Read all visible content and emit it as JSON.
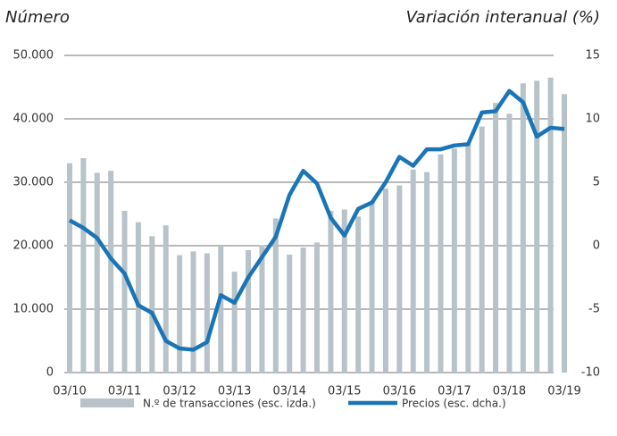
{
  "chart_data": {
    "type": "bar_line",
    "y_title": "Número",
    "y2_title": "Variación interanual (%)",
    "categories": [
      "03/10",
      null,
      null,
      null,
      "03/11",
      null,
      null,
      null,
      "03/12",
      null,
      null,
      null,
      "03/13",
      null,
      null,
      null,
      "03/14",
      null,
      null,
      null,
      "03/15",
      null,
      null,
      null,
      "03/16",
      null,
      null,
      null,
      "03/17",
      null,
      null,
      null,
      "03/18",
      null,
      null,
      null,
      "03/19"
    ],
    "series": [
      {
        "name": "N.º de transacciones (esc. izda.)",
        "color": "#b7c3c8",
        "type": "bar",
        "values": [
          33000,
          33800,
          31500,
          31800,
          25500,
          23700,
          21500,
          23200,
          18500,
          19100,
          18800,
          20000,
          15900,
          19300,
          20100,
          24300,
          18600,
          19700,
          20500,
          25500,
          25700,
          24600,
          27000,
          29000,
          29500,
          32000,
          31600,
          34400,
          35300,
          36000,
          38800,
          42500,
          40800,
          45600,
          46000,
          46500,
          43900
        ]
      },
      {
        "name": "Precios (esc. dcha.)",
        "color": "#1a75b8",
        "type": "line",
        "axis": "y2",
        "values": [
          2.0,
          1.4,
          0.6,
          -1.0,
          -2.2,
          -4.7,
          -5.3,
          -7.5,
          -8.1,
          -8.2,
          -7.6,
          -3.9,
          -4.5,
          -2.5,
          -0.9,
          0.7,
          4.0,
          5.9,
          4.9,
          2.2,
          0.8,
          2.9,
          3.4,
          5.0,
          7.0,
          6.3,
          7.6,
          7.6,
          7.9,
          8.0,
          10.5,
          10.6,
          12.2,
          11.3,
          8.6,
          9.3,
          9.2
        ]
      }
    ],
    "ylim": [
      0,
      50000
    ],
    "yticks": [
      0,
      {
        "value": 10000,
        "label": "10.000"
      },
      {
        "value": 20000,
        "label": "20.000"
      },
      {
        "value": 30000,
        "label": "30.000"
      },
      {
        "value": 40000,
        "label": "40.000"
      },
      {
        "value": 50000,
        "label": "50.000"
      }
    ],
    "y2lim": [
      -10,
      15
    ],
    "y2ticks": [
      -10,
      -5,
      0,
      5,
      10,
      15
    ],
    "grid": true
  }
}
